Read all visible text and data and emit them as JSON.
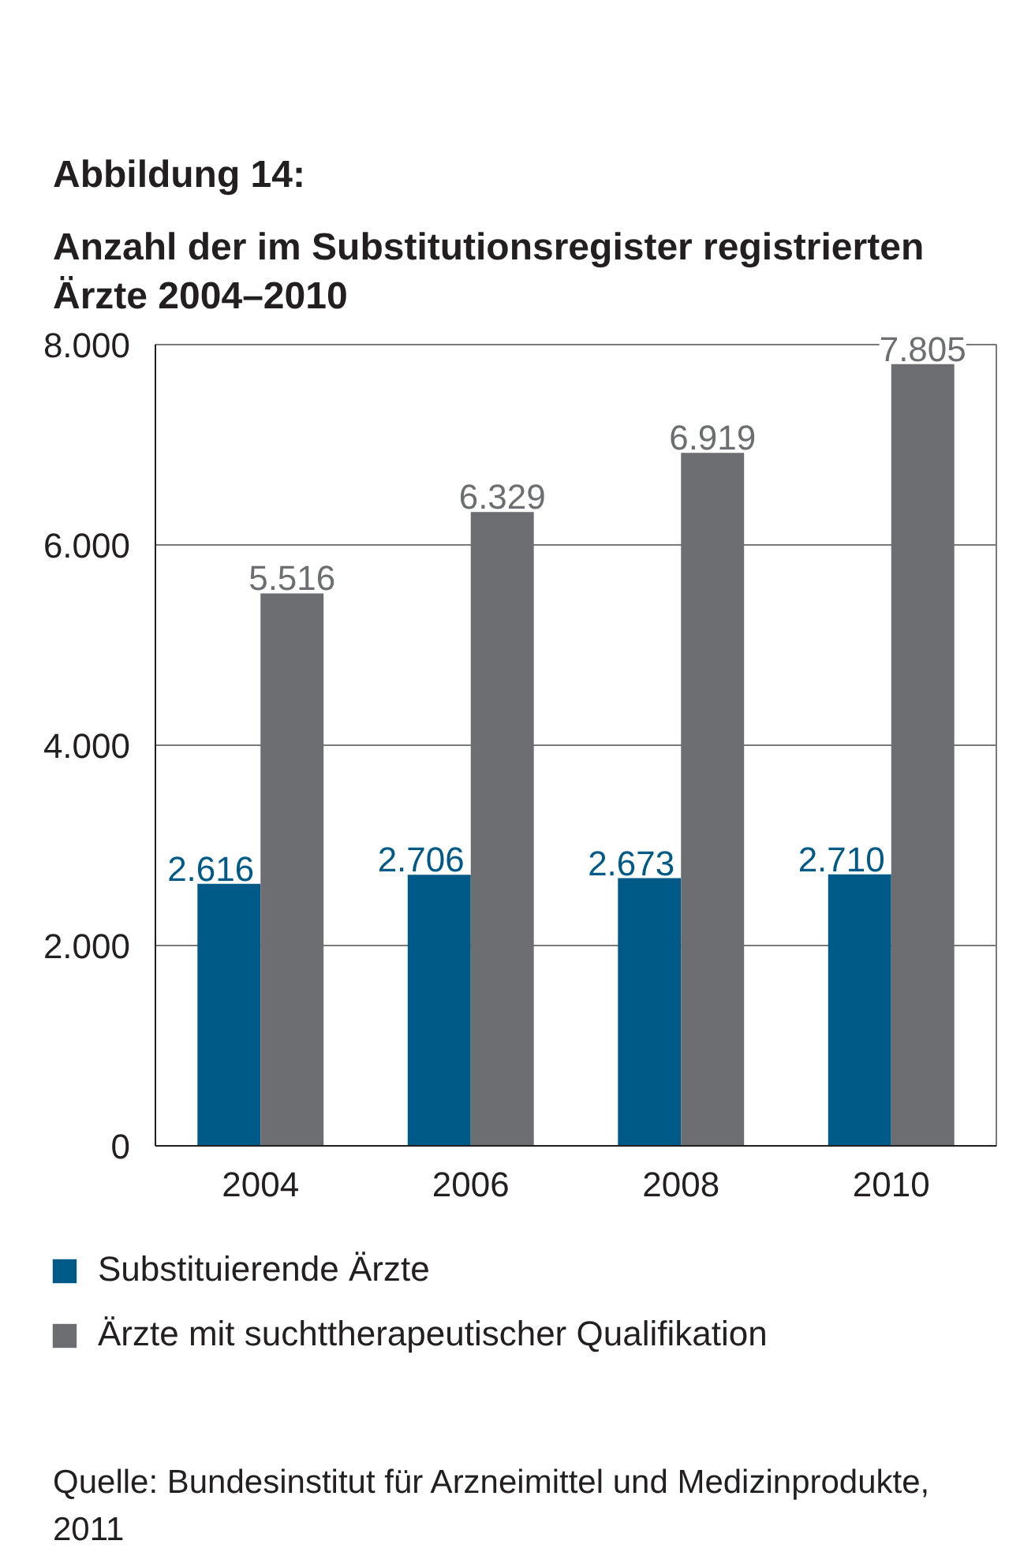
{
  "chart_data": {
    "type": "bar",
    "title": "Abbildung 14:",
    "subtitle": "Anzahl der im Substitutionsregister registrierten Ärzte 2004–2010",
    "categories": [
      "2004",
      "2006",
      "2008",
      "2010"
    ],
    "series": [
      {
        "name": "Substituierende Ärzte",
        "color": "#005a87",
        "values": [
          2616,
          2706,
          2673,
          2710
        ],
        "value_labels": [
          "2.616",
          "2.706",
          "2.673",
          "2.710"
        ]
      },
      {
        "name": "Ärzte mit suchttherapeutischer Qualifikation",
        "color": "#6d6e71",
        "values": [
          5516,
          6329,
          6919,
          7805
        ],
        "value_labels": [
          "5.516",
          "6.329",
          "6.919",
          "7.805"
        ]
      }
    ],
    "ylim": [
      0,
      8000
    ],
    "yticks": [
      0,
      {
        "value": 2000,
        "label": "2.000"
      },
      {
        "value": 4000,
        "label": "4.000"
      },
      {
        "value": 6000,
        "label": "6.000"
      },
      {
        "value": 8000,
        "label": "8.000"
      }
    ],
    "grid": "y",
    "legend": "bottom",
    "annotations": [
      "Quelle: Bundesinstitut für Arzneimittel und Medizinprodukte, 2011"
    ]
  }
}
